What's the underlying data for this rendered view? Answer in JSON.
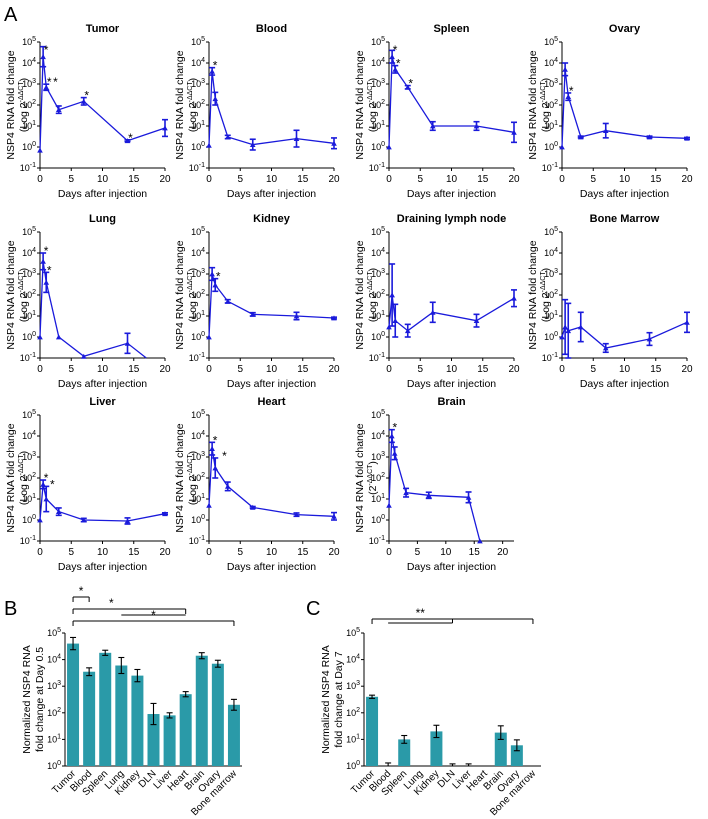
{
  "figure": {
    "panel_letters": {
      "a": "A",
      "b": "B",
      "c": "C"
    }
  },
  "chart_data": [
    {
      "id": "tumor",
      "type": "line",
      "title": "Tumor",
      "xlabel": "Days after injection",
      "ylabel": [
        "NSP4 RNA fold change",
        "(Log 2",
        "-ΔΔCT",
        ")"
      ],
      "xlim": [
        0,
        20
      ],
      "xticks": [
        0,
        5,
        10,
        15,
        20
      ],
      "ylim_log10": [
        -1,
        5
      ],
      "ytick_labels": [
        "10^-1",
        "10^0",
        "10^1",
        "10^2",
        "10^3",
        "10^4",
        "10^5"
      ],
      "x": [
        0,
        0.5,
        1,
        3,
        7,
        14,
        20
      ],
      "y": [
        0.7,
        20000,
        700,
        60,
        150,
        2,
        8
      ],
      "err": [
        0,
        3,
        1.4,
        1.5,
        1.5,
        1.1,
        2.5
      ],
      "annotations": [
        {
          "text": "*",
          "x": 0.5
        },
        {
          "text": "*",
          "x": 1
        },
        {
          "text": "*",
          "x": 2
        },
        {
          "text": "*",
          "x": 7
        },
        {
          "text": "*",
          "x": 14
        }
      ]
    },
    {
      "id": "blood",
      "type": "line",
      "title": "Blood",
      "xlabel": "Days after injection",
      "ylabel": [
        "NSP4 RNA fold change",
        "(Log 2",
        "-ΔΔCT",
        ")"
      ],
      "xlim": [
        0,
        20
      ],
      "xticks": [
        0,
        5,
        10,
        15,
        20
      ],
      "ylim_log10": [
        -1,
        5
      ],
      "ytick_labels": [
        "10^-1",
        "10^0",
        "10^1",
        "10^2",
        "10^3",
        "10^4",
        "10^5"
      ],
      "x": [
        0,
        0.5,
        1,
        3,
        7,
        14,
        20
      ],
      "y": [
        1.2,
        4000,
        200,
        3,
        1.3,
        2.5,
        1.5
      ],
      "err": [
        0,
        1.5,
        2,
        1.2,
        1.8,
        2.5,
        1.8
      ],
      "annotations": [
        {
          "text": "*",
          "x": 0.5
        }
      ]
    },
    {
      "id": "spleen",
      "type": "line",
      "title": "Spleen",
      "xlabel": "Days after injection",
      "ylabel": [
        "NSP4 RNA fold change",
        "(Log 2",
        "-ΔΔCT",
        ")"
      ],
      "xlim": [
        0,
        20
      ],
      "xticks": [
        0,
        5,
        10,
        15,
        20
      ],
      "ylim_log10": [
        -1,
        5
      ],
      "ytick_labels": [
        "10^-1",
        "10^0",
        "10^1",
        "10^2",
        "10^3",
        "10^4",
        "10^5"
      ],
      "x": [
        0,
        0.5,
        1,
        3,
        7,
        14,
        20
      ],
      "y": [
        1,
        20000,
        5000,
        700,
        10,
        10,
        5
      ],
      "err": [
        0,
        2,
        1.5,
        1.2,
        1.6,
        1.6,
        3
      ],
      "annotations": [
        {
          "text": "*",
          "x": 0.5
        },
        {
          "text": "*",
          "x": 1
        },
        {
          "text": "*",
          "x": 3
        }
      ]
    },
    {
      "id": "ovary",
      "type": "line",
      "title": "Ovary",
      "xlabel": "Days after injection",
      "ylabel": [
        "NSP4 RNA fold change",
        "(Log 2",
        "-ΔΔCT",
        ")"
      ],
      "xlim": [
        0,
        20
      ],
      "xticks": [
        0,
        5,
        10,
        15,
        20
      ],
      "ylim_log10": [
        -1,
        5
      ],
      "ytick_labels": [
        "10^-1",
        "10^0",
        "10^1",
        "10^2",
        "10^3",
        "10^4",
        "10^5"
      ],
      "x": [
        0,
        0.5,
        1,
        3,
        7,
        14,
        20
      ],
      "y": [
        1,
        5000,
        250,
        3,
        6,
        3,
        2.6
      ],
      "err": [
        0,
        2,
        1.5,
        1.1,
        2.2,
        1.1,
        1.1
      ],
      "annotations": [
        {
          "text": "*",
          "x": 1
        }
      ]
    },
    {
      "id": "lung",
      "type": "line",
      "title": "Lung",
      "xlabel": "Days after injection",
      "ylabel": [
        "NSP4 RNA fold change",
        "(Log 2",
        "-ΔΔCT",
        ")"
      ],
      "xlim": [
        0,
        20
      ],
      "xticks": [
        0,
        5,
        10,
        15,
        20
      ],
      "ylim_log10": [
        -1,
        5
      ],
      "ytick_labels": [
        "10^-1",
        "10^0",
        "10^1",
        "10^2",
        "10^3",
        "10^4",
        "10^5"
      ],
      "x": [
        0,
        0.5,
        1,
        3,
        7,
        14,
        17
      ],
      "y": [
        1,
        4000,
        400,
        1,
        0.12,
        0.5,
        0.07
      ],
      "err": [
        0,
        2.5,
        3,
        1,
        1,
        3,
        1
      ],
      "annotations": [
        {
          "text": "*",
          "x": 0.5
        },
        {
          "text": "*",
          "x": 1
        }
      ]
    },
    {
      "id": "kidney",
      "type": "line",
      "title": "Kidney",
      "xlabel": "Days after injection",
      "ylabel": [
        "NSP4 RNA fold change",
        "(Log 2",
        "-ΔΔCT",
        ")"
      ],
      "xlim": [
        0,
        20
      ],
      "xticks": [
        0,
        5,
        10,
        15,
        20
      ],
      "ylim_log10": [
        -1,
        5
      ],
      "ytick_labels": [
        "10^-1",
        "10^0",
        "10^1",
        "10^2",
        "10^3",
        "10^4",
        "10^5"
      ],
      "x": [
        0,
        0.5,
        1,
        3,
        7,
        14,
        20
      ],
      "y": [
        1,
        1000,
        300,
        50,
        12,
        10,
        8
      ],
      "err": [
        0,
        2,
        2,
        1.2,
        1.2,
        1.5,
        1.1
      ],
      "annotations": [
        {
          "text": "*",
          "x": 1
        }
      ]
    },
    {
      "id": "dln",
      "type": "line",
      "title": "Draining lymph node",
      "xlabel": "Days after injection",
      "ylabel": [
        "NSP4 RNA fold change",
        "(Log 2",
        "-ΔΔCT",
        ")"
      ],
      "xlim": [
        0,
        20
      ],
      "xticks": [
        0,
        5,
        10,
        15,
        20
      ],
      "ylim_log10": [
        -1,
        5
      ],
      "ytick_labels": [
        "10^-1",
        "10^0",
        "10^1",
        "10^2",
        "10^3",
        "10^4",
        "10^5"
      ],
      "x": [
        0,
        0.5,
        1,
        3,
        7,
        14,
        20
      ],
      "y": [
        3,
        100,
        6,
        2,
        15,
        6,
        70
      ],
      "err": [
        0,
        30,
        6,
        2,
        3,
        2,
        2.5
      ],
      "annotations": []
    },
    {
      "id": "bone_marrow",
      "type": "line",
      "title": "Bone  Marrow",
      "xlabel": "Days after injection",
      "ylabel": [
        "NSP4 RNA fold change",
        "(Log 2",
        "-ΔΔCT",
        ")"
      ],
      "xlim": [
        0,
        20
      ],
      "xticks": [
        0,
        5,
        10,
        15,
        20
      ],
      "ylim_log10": [
        -1,
        5
      ],
      "ytick_labels": [
        "10^-1",
        "10^0",
        "10^1",
        "10^2",
        "10^3",
        "10^4",
        "10^5"
      ],
      "x": [
        0,
        0.5,
        1,
        3,
        7,
        14,
        20
      ],
      "y": [
        1,
        3,
        2,
        3,
        0.3,
        0.8,
        5
      ],
      "err": [
        0,
        20,
        20,
        5,
        1.6,
        2,
        3
      ],
      "annotations": []
    },
    {
      "id": "liver",
      "type": "line",
      "title": "Liver",
      "xlabel": "Days after injection",
      "ylabel": [
        "NSP4 RNA fold change",
        "(Log 2",
        "-ΔΔCT",
        ")"
      ],
      "xlim": [
        0,
        20
      ],
      "xticks": [
        0,
        5,
        10,
        15,
        20
      ],
      "ylim_log10": [
        -1,
        5
      ],
      "ytick_labels": [
        "10^-1",
        "10^0",
        "10^1",
        "10^2",
        "10^3",
        "10^4",
        "10^5"
      ],
      "x": [
        0,
        0.5,
        1,
        3,
        7,
        14,
        20
      ],
      "y": [
        1,
        50,
        10,
        2.5,
        1,
        0.9,
        2
      ],
      "err": [
        0,
        1.6,
        4,
        1.5,
        1.2,
        1.4,
        1.1
      ],
      "annotations": [
        {
          "text": "*",
          "x": 0.5
        },
        {
          "text": "*",
          "x": 1.5
        }
      ]
    },
    {
      "id": "heart",
      "type": "line",
      "title": "Heart",
      "xlabel": "Days after injection",
      "ylabel": [
        "NSP4 RNA fold change",
        "(Log 2",
        "-ΔΔCT",
        ")"
      ],
      "xlim": [
        0,
        20
      ],
      "xticks": [
        0,
        5,
        10,
        15,
        20
      ],
      "ylim_log10": [
        -1,
        5
      ],
      "ytick_labels": [
        "10^-1",
        "10^0",
        "10^1",
        "10^2",
        "10^3",
        "10^4",
        "10^5"
      ],
      "x": [
        0,
        0.5,
        1,
        3,
        7,
        14,
        20
      ],
      "y": [
        5,
        2500,
        300,
        40,
        4,
        1.8,
        1.5
      ],
      "err": [
        0,
        2,
        3,
        1.6,
        1.1,
        1.2,
        1.5
      ],
      "annotations": [
        {
          "text": "*",
          "x": 0.5
        },
        {
          "text": "*",
          "x": 2
        }
      ]
    },
    {
      "id": "brain",
      "type": "line",
      "title": "Brain",
      "xlabel": "Days after injection",
      "ylabel": [
        "NSP4 RNA fold change",
        "(2",
        "-ΔΔCT",
        ")"
      ],
      "xlim": [
        0,
        22
      ],
      "xticks": [
        0,
        5,
        10,
        15,
        20
      ],
      "ylim_log10": [
        -1,
        5
      ],
      "ytick_labels": [
        "10^-1",
        "10^0",
        "10^1",
        "10^2",
        "10^3",
        "10^4",
        "10^5"
      ],
      "x": [
        0,
        0.5,
        1,
        3,
        7,
        14,
        16
      ],
      "y": [
        5,
        10000,
        1500,
        20,
        15,
        12,
        0.1
      ],
      "err": [
        0,
        2,
        2,
        1.6,
        1.4,
        1.8,
        1
      ],
      "annotations": [
        {
          "text": "*",
          "x": 0.5
        }
      ]
    },
    {
      "id": "day05",
      "type": "bar",
      "panel": "B",
      "ylabel": [
        "Normalized NSP4 RNA",
        "fold change at Day 0.5"
      ],
      "ylim_log10": [
        0,
        5
      ],
      "ytick_labels": [
        "10^0",
        "10^1",
        "10^2",
        "10^3",
        "10^4",
        "10^5"
      ],
      "categories": [
        "Tumor",
        "Blood",
        "Spleen",
        "Lung",
        "Kidney",
        "DLN",
        "Liver",
        "Heart",
        "Brain",
        "Ovary",
        "Bone marrow"
      ],
      "values": [
        40000,
        3500,
        18000,
        6000,
        2500,
        90,
        80,
        500,
        14000,
        7000,
        200
      ],
      "err": [
        1.7,
        1.4,
        1.25,
        2,
        1.7,
        2.5,
        1.25,
        1.25,
        1.3,
        1.35,
        1.6
      ],
      "significance": [
        {
          "text": "*",
          "from": "Tumor",
          "to": "Blood"
        },
        {
          "text": "*",
          "from": "Tumor",
          "to": "Heart",
          "group_start": "Lung"
        },
        {
          "text": "*",
          "from": "Tumor",
          "to": "Bone marrow"
        }
      ]
    },
    {
      "id": "day7",
      "type": "bar",
      "panel": "C",
      "ylabel": [
        "Normalized NSP4 RNA",
        "fold change at Day 7"
      ],
      "ylim_log10": [
        0,
        5
      ],
      "ytick_labels": [
        "10^0",
        "10^1",
        "10^2",
        "10^3",
        "10^4",
        "10^5"
      ],
      "categories": [
        "Tumor",
        "Blood",
        "Spleen",
        "Lung",
        "Kidney",
        "DLN",
        "Liver",
        "Heart",
        "Brain",
        "Ovary",
        "Bone marrow"
      ],
      "values": [
        400,
        1,
        10,
        1,
        20,
        1,
        1,
        1,
        18,
        6,
        1
      ],
      "err": [
        1.15,
        1.3,
        1.4,
        1,
        1.7,
        1.2,
        1.2,
        1,
        1.8,
        1.6,
        1
      ],
      "significance": [
        {
          "text": "**",
          "from": "Tumor",
          "to": "Bone marrow",
          "group_start": "Blood",
          "group_end": "DLN"
        }
      ]
    }
  ]
}
